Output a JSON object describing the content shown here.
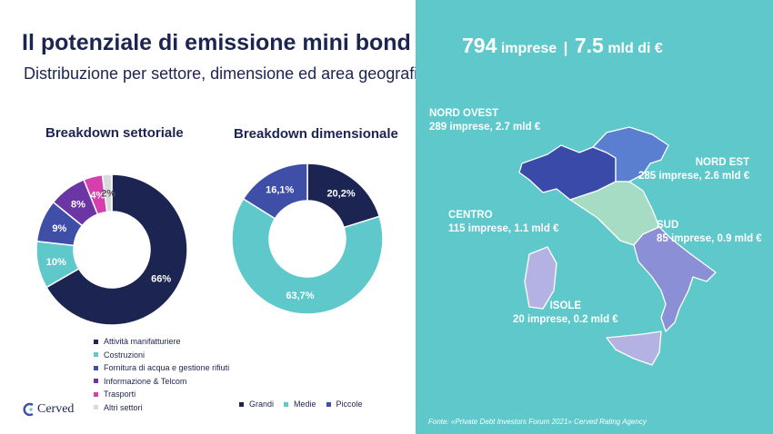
{
  "header": {
    "title": "Il potenziale di emissione mini bond",
    "subtitle": "Distribuzione per settore, dimensione ed area geografica"
  },
  "chart_data": [
    {
      "type": "pie",
      "title": "Breakdown settoriale",
      "donut": true,
      "categories": [
        "Attività manifatturiere",
        "Costruzioni",
        "Fornitura di acqua e gestione rifiuti",
        "Informazione & Telcom",
        "Trasporti",
        "Altri settori"
      ],
      "values": [
        66,
        10,
        9,
        8,
        4,
        2
      ],
      "labels": [
        "66%",
        "10%",
        "9%",
        "8%",
        "4%",
        "2%"
      ],
      "colors": [
        "#1c2452",
        "#5ec8cb",
        "#3f4ea7",
        "#6b35a3",
        "#d63fae",
        "#d9d9de"
      ],
      "legend": "bottom"
    },
    {
      "type": "pie",
      "title": "Breakdown dimensionale",
      "donut": true,
      "categories": [
        "Grandi",
        "Medie",
        "Piccole"
      ],
      "values": [
        20.2,
        63.7,
        16.1
      ],
      "labels": [
        "20,2%",
        "63,7%",
        "16,1%"
      ],
      "colors": [
        "#1c2452",
        "#5ec8cb",
        "#3f4ea7"
      ],
      "legend": "bottom"
    }
  ],
  "panel": {
    "headline_count": "794",
    "headline_count_unit": "imprese",
    "headline_sep": "|",
    "headline_value": "7.5",
    "headline_value_unit": "mld di €",
    "background": "#5ec8cb",
    "regions": [
      {
        "name": "NORD OVEST",
        "detail": "289 imprese, 2.7 mld €",
        "color": "#3a4aa8"
      },
      {
        "name": "NORD EST",
        "detail": "285 imprese, 2.6 mld €",
        "color": "#5b7fd0"
      },
      {
        "name": "CENTRO",
        "detail": "115 imprese, 1.1 mld €",
        "color": "#a7dcc4"
      },
      {
        "name": "SUD",
        "detail": "85 imprese, 0.9 mld €",
        "color": "#8b8fd6"
      },
      {
        "name": "ISOLE",
        "detail": "20 imprese, 0.2 mld €",
        "color": "#b4b2e2"
      }
    ],
    "source": "Fonte: «Private Debt Investors Forum 2021» Cerved Rating Agency"
  },
  "logo": {
    "name": "Cerved",
    "icon": "cerved-logo-icon"
  }
}
